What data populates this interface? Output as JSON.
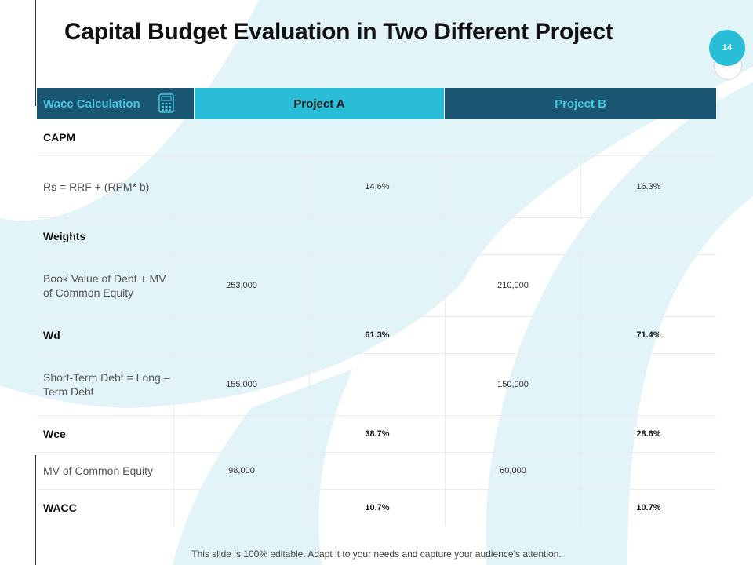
{
  "slide": {
    "title": "Capital Budget Evaluation in Two Different Project",
    "page_number": "14",
    "footer": "This slide is 100% editable. Adapt it to your needs and capture your audience’s attention."
  },
  "table": {
    "header": {
      "col0": "Wacc Calculation",
      "col_a": "Project A",
      "col_b": "Project B"
    },
    "rows": {
      "capm": {
        "label": "CAPM"
      },
      "rs": {
        "label": "Rs = RRF + (RPM* b)",
        "a_value": "14.6%",
        "b_value": "16.3%"
      },
      "weights": {
        "label": "Weights"
      },
      "book_value": {
        "label": "Book Value of Debt + MV of Common Equity",
        "a_value": "253,000",
        "b_value": "210,000"
      },
      "wd": {
        "label": "Wd",
        "a_value": "61.3%",
        "b_value": "71.4%"
      },
      "short_term": {
        "label": "Short-Term Debt = Long – Term Debt",
        "a_value": "155,000",
        "b_value": "150,000"
      },
      "wce": {
        "label": "Wce",
        "a_value": "38.7%",
        "b_value": "28.6%"
      },
      "mv_equity": {
        "label": "MV of Common Equity",
        "a_value": "98,000",
        "b_value": "60,000"
      },
      "wacc": {
        "label": "WACC",
        "a_value": "10.7%",
        "b_value": "10.7%"
      }
    }
  },
  "colors": {
    "accent_cyan": "#29bdd7",
    "dark_teal": "#1a5571",
    "light_bg_shape": "#e3f4f8"
  }
}
